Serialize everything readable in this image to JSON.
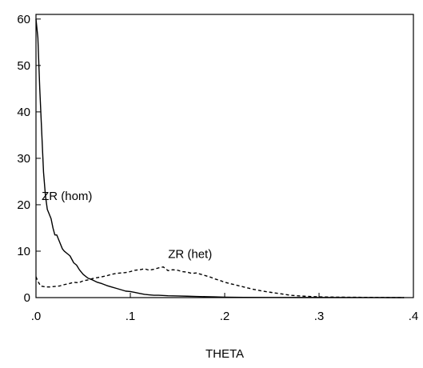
{
  "chart_data": {
    "type": "line",
    "title": "",
    "xlabel": "THETA",
    "ylabel": "",
    "xlim": [
      0.0,
      0.4
    ],
    "ylim": [
      0,
      61
    ],
    "xticks": [
      {
        "value": 0.0,
        "label": ".0"
      },
      {
        "value": 0.1,
        "label": ".1"
      },
      {
        "value": 0.2,
        "label": ".2"
      },
      {
        "value": 0.3,
        "label": ".3"
      },
      {
        "value": 0.4,
        "label": ".4"
      }
    ],
    "yticks": [
      {
        "value": 0,
        "label": "0"
      },
      {
        "value": 10,
        "label": "10"
      },
      {
        "value": 20,
        "label": "20"
      },
      {
        "value": 30,
        "label": "30"
      },
      {
        "value": 40,
        "label": "40"
      },
      {
        "value": 50,
        "label": "50"
      },
      {
        "value": 60,
        "label": "60"
      }
    ],
    "grid": false,
    "series": [
      {
        "name": "ZR (hom)",
        "style": "solid",
        "color": "#000000",
        "x": [
          0.0,
          0.002,
          0.004,
          0.006,
          0.008,
          0.01,
          0.012,
          0.014,
          0.016,
          0.018,
          0.02,
          0.022,
          0.025,
          0.028,
          0.03,
          0.033,
          0.036,
          0.04,
          0.043,
          0.046,
          0.05,
          0.055,
          0.06,
          0.065,
          0.07,
          0.075,
          0.08,
          0.085,
          0.09,
          0.095,
          0.1,
          0.105,
          0.11,
          0.115,
          0.12,
          0.125,
          0.13,
          0.14,
          0.15,
          0.16,
          0.17,
          0.18,
          0.19,
          0.2,
          0.22,
          0.25,
          0.3,
          0.35,
          0.39
        ],
        "y": [
          60,
          56,
          45,
          36,
          27,
          22,
          19,
          18,
          17,
          15,
          13.5,
          13.5,
          12,
          10.5,
          10,
          9.5,
          9,
          7.5,
          7,
          6,
          5,
          4.2,
          3.8,
          3.3,
          3,
          2.6,
          2.3,
          2.0,
          1.7,
          1.4,
          1.3,
          1.1,
          0.9,
          0.7,
          0.6,
          0.5,
          0.5,
          0.4,
          0.35,
          0.3,
          0.25,
          0.2,
          0.15,
          0.1,
          0.05,
          0.03,
          0.02,
          0.01,
          0.0
        ]
      },
      {
        "name": "ZR (het)",
        "style": "dashed",
        "color": "#000000",
        "x": [
          0.0,
          0.002,
          0.005,
          0.01,
          0.015,
          0.02,
          0.025,
          0.03,
          0.035,
          0.04,
          0.045,
          0.05,
          0.055,
          0.06,
          0.065,
          0.07,
          0.075,
          0.08,
          0.085,
          0.09,
          0.095,
          0.1,
          0.105,
          0.11,
          0.115,
          0.12,
          0.125,
          0.13,
          0.135,
          0.14,
          0.145,
          0.15,
          0.155,
          0.16,
          0.165,
          0.17,
          0.175,
          0.18,
          0.185,
          0.19,
          0.195,
          0.2,
          0.21,
          0.22,
          0.23,
          0.24,
          0.25,
          0.26,
          0.27,
          0.28,
          0.29,
          0.3,
          0.32,
          0.35,
          0.39
        ],
        "y": [
          4.5,
          3.5,
          2.5,
          2.3,
          2.3,
          2.4,
          2.5,
          2.8,
          3.0,
          3.3,
          3.2,
          3.6,
          3.8,
          4.1,
          4.3,
          4.5,
          4.7,
          5.0,
          5.2,
          5.3,
          5.4,
          5.6,
          5.9,
          6.0,
          6.2,
          5.9,
          6.1,
          6.4,
          6.6,
          5.8,
          6.0,
          5.9,
          5.6,
          5.5,
          5.2,
          5.3,
          5.0,
          4.7,
          4.4,
          4.0,
          3.7,
          3.3,
          2.8,
          2.3,
          1.8,
          1.4,
          1.1,
          0.8,
          0.5,
          0.35,
          0.25,
          0.15,
          0.1,
          0.05,
          0.0
        ]
      }
    ],
    "annotations": [
      {
        "text": "ZR (hom)",
        "x": 0.006,
        "y": 21
      },
      {
        "text": "ZR (het)",
        "x": 0.14,
        "y": 8.5
      }
    ]
  }
}
